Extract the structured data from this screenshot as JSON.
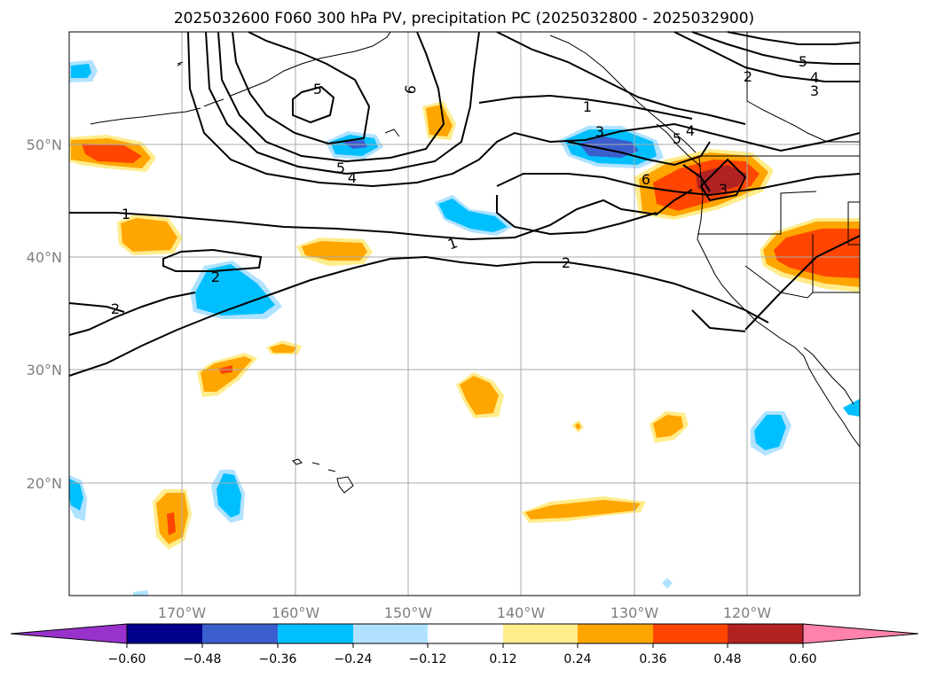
{
  "title": "2025032600 F060 300 hPa PV, precipitation PC (2025032800 - 2025032900)",
  "map": {
    "lat_labels": [
      "50°N",
      "40°N",
      "30°N",
      "20°N"
    ],
    "lon_labels": [
      "170°W",
      "160°W",
      "150°W",
      "140°W",
      "130°W",
      "120°W"
    ],
    "contour_labels": [
      "5",
      "6",
      "4",
      "5",
      "1",
      "3",
      "5",
      "4",
      "6",
      "2",
      "5",
      "4",
      "3",
      "1",
      "2",
      "2",
      "1",
      "3"
    ],
    "precip_colors": {
      "neg_light": "#b0e2ff",
      "neg_med": "#00bfff",
      "neg_strong": "#3a5fcd",
      "pos_light": "#ffec8b",
      "pos_med": "#ffa500",
      "pos_strong": "#ff4500",
      "pos_xstrong": "#b22222"
    }
  },
  "colorbar": {
    "ticks": [
      "−0.60",
      "−0.48",
      "−0.36",
      "−0.24",
      "−0.12",
      "0.12",
      "0.24",
      "0.36",
      "0.48",
      "0.60"
    ],
    "colors": [
      "#9932cc",
      "#00008b",
      "#3a5fcd",
      "#00bfff",
      "#b0e2ff",
      "#ffffff",
      "#ffec8b",
      "#ffa500",
      "#ff4500",
      "#b22222",
      "#ff82ab",
      "#ff82ab"
    ]
  }
}
